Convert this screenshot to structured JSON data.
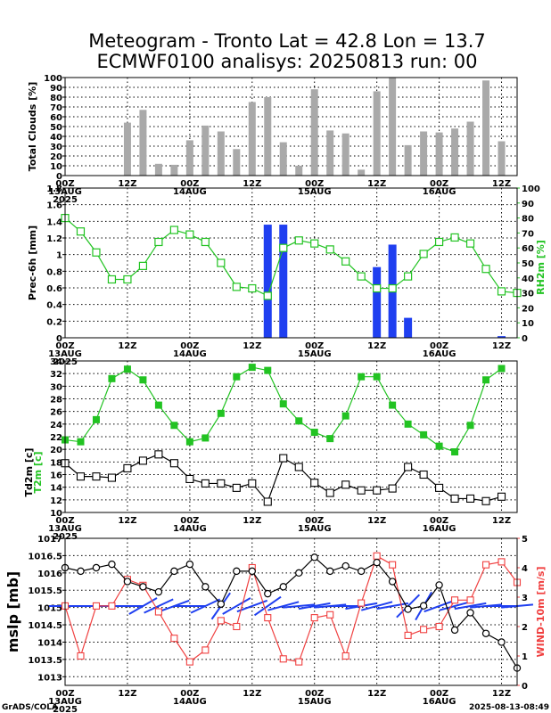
{
  "title_line1": "Meteogram - Tronto Lat = 42.8 Lon = 13.7",
  "title_line2": "ECMWF0100 analisys: 20250813 run: 00",
  "footer_left": "GrADS/COLA",
  "footer_right": "2025-08-13-08:49",
  "colors": {
    "gray_bar": "#a9a9a9",
    "blue": "#1f3ff0",
    "green": "#22c322",
    "black": "#000000",
    "red": "#f04040"
  },
  "x_axis": {
    "ticks": [
      "00Z",
      "12Z",
      "00Z",
      "12Z",
      "00Z",
      "12Z",
      "00Z",
      "12Z"
    ],
    "date_labels": [
      "13AUG",
      "14AUG",
      "15AUG",
      "16AUG"
    ],
    "year_label": "2025"
  },
  "chart_data": [
    {
      "type": "bar",
      "ylabel": "Total Clouds [%]",
      "ylim": [
        0,
        100
      ],
      "yticks": [
        0,
        10,
        20,
        30,
        40,
        50,
        60,
        70,
        80,
        90,
        100
      ],
      "series": [
        {
          "color": "#a9a9a9",
          "points": [
            [
              12,
              54
            ],
            [
              15,
              67
            ],
            [
              18,
              12
            ],
            [
              21,
              11
            ],
            [
              24,
              36
            ],
            [
              27,
              51
            ],
            [
              30,
              45
            ],
            [
              33,
              27
            ],
            [
              36,
              75
            ],
            [
              39,
              80
            ],
            [
              42,
              34
            ],
            [
              45,
              10
            ],
            [
              48,
              88
            ],
            [
              51,
              46
            ],
            [
              54,
              43
            ],
            [
              57,
              6
            ],
            [
              60,
              86
            ],
            [
              63,
              100
            ],
            [
              66,
              31
            ],
            [
              69,
              45
            ],
            [
              72,
              44
            ],
            [
              75,
              48
            ],
            [
              78,
              55
            ],
            [
              81,
              97
            ],
            [
              84,
              35
            ]
          ]
        }
      ]
    },
    {
      "type": "bar+line",
      "ylabel": "Prec-6h [mm]",
      "ylabel_right": "RH2m [%]",
      "ylim": [
        0,
        1.8
      ],
      "yticks": [
        0,
        0.2,
        0.4,
        0.6,
        0.8,
        1,
        1.2,
        1.4,
        1.6,
        1.8
      ],
      "y2lim": [
        0,
        100
      ],
      "y2ticks": [
        0,
        10,
        20,
        30,
        40,
        50,
        60,
        70,
        80,
        90,
        100
      ],
      "precip": [
        [
          39,
          1.36
        ],
        [
          42,
          1.36
        ],
        [
          60,
          0.85
        ],
        [
          63,
          1.12
        ],
        [
          66,
          0.24
        ],
        [
          84,
          0.02
        ]
      ],
      "rh2m": [
        [
          0,
          80
        ],
        [
          3,
          71
        ],
        [
          6,
          57
        ],
        [
          9,
          39
        ],
        [
          12,
          39
        ],
        [
          15,
          48
        ],
        [
          18,
          64
        ],
        [
          21,
          72
        ],
        [
          24,
          69
        ],
        [
          27,
          64
        ],
        [
          30,
          50
        ],
        [
          33,
          34
        ],
        [
          36,
          33
        ],
        [
          39,
          28
        ],
        [
          42,
          60
        ],
        [
          45,
          65
        ],
        [
          48,
          63
        ],
        [
          51,
          59
        ],
        [
          54,
          51
        ],
        [
          57,
          41
        ],
        [
          60,
          33
        ],
        [
          63,
          33
        ],
        [
          66,
          41
        ],
        [
          69,
          56
        ],
        [
          72,
          64
        ],
        [
          75,
          67
        ],
        [
          78,
          63
        ],
        [
          81,
          46
        ],
        [
          84,
          31
        ],
        [
          87,
          30
        ]
      ]
    },
    {
      "type": "line",
      "ylabel": "Td2m [c]",
      "ylabel_green": "T2m [c]",
      "ylim": [
        10,
        34
      ],
      "yticks": [
        10,
        12,
        14,
        16,
        18,
        20,
        22,
        24,
        26,
        28,
        30,
        32,
        34
      ],
      "t2m": [
        [
          0,
          21.5
        ],
        [
          3,
          21.2
        ],
        [
          6,
          24.7
        ],
        [
          9,
          31.2
        ],
        [
          12,
          32.7
        ],
        [
          15,
          31.0
        ],
        [
          18,
          27.0
        ],
        [
          21,
          23.8
        ],
        [
          24,
          21.2
        ],
        [
          27,
          21.8
        ],
        [
          30,
          25.7
        ],
        [
          33,
          31.5
        ],
        [
          36,
          33.0
        ],
        [
          39,
          32.5
        ],
        [
          42,
          27.2
        ],
        [
          45,
          24.5
        ],
        [
          48,
          22.7
        ],
        [
          51,
          21.7
        ],
        [
          54,
          25.3
        ],
        [
          57,
          31.5
        ],
        [
          60,
          31.5
        ],
        [
          63,
          27.0
        ],
        [
          66,
          24.0
        ],
        [
          69,
          22.3
        ],
        [
          72,
          20.5
        ],
        [
          75,
          19.6
        ],
        [
          78,
          23.8
        ],
        [
          81,
          31.0
        ],
        [
          84,
          32.8
        ]
      ],
      "td2m": [
        [
          0,
          17.8
        ],
        [
          3,
          15.7
        ],
        [
          6,
          15.7
        ],
        [
          9,
          15.5
        ],
        [
          12,
          17.0
        ],
        [
          15,
          18.2
        ],
        [
          18,
          19.2
        ],
        [
          21,
          17.8
        ],
        [
          24,
          15.3
        ],
        [
          27,
          14.6
        ],
        [
          30,
          14.6
        ],
        [
          33,
          13.9
        ],
        [
          36,
          14.6
        ],
        [
          39,
          11.7
        ],
        [
          42,
          18.6
        ],
        [
          45,
          17.2
        ],
        [
          48,
          14.7
        ],
        [
          51,
          13.1
        ],
        [
          54,
          14.4
        ],
        [
          57,
          13.5
        ],
        [
          60,
          13.5
        ],
        [
          63,
          13.8
        ],
        [
          66,
          17.2
        ],
        [
          69,
          16.0
        ],
        [
          72,
          13.9
        ],
        [
          75,
          12.2
        ],
        [
          78,
          12.2
        ],
        [
          81,
          11.8
        ],
        [
          84,
          12.5
        ]
      ]
    },
    {
      "type": "line+barbs",
      "ylabel": "mslp [mb]",
      "ylabel_right": "WIND-10m [m/s]",
      "ylim": [
        1012.75,
        1017.0
      ],
      "yticks": [
        1013,
        1013.5,
        1014,
        1014.5,
        1015,
        1015.5,
        1016,
        1016.5,
        1017
      ],
      "y2lim": [
        0,
        5
      ],
      "y2ticks": [
        0,
        1,
        2,
        3,
        4,
        5
      ],
      "mslp": [
        [
          0,
          1016.15
        ],
        [
          3,
          1016.05
        ],
        [
          6,
          1016.15
        ],
        [
          9,
          1016.25
        ],
        [
          12,
          1015.75
        ],
        [
          15,
          1015.6
        ],
        [
          18,
          1015.45
        ],
        [
          21,
          1016.05
        ],
        [
          24,
          1016.25
        ],
        [
          27,
          1015.6
        ],
        [
          30,
          1015.1
        ],
        [
          33,
          1016.05
        ],
        [
          36,
          1016.05
        ],
        [
          39,
          1015.4
        ],
        [
          42,
          1015.6
        ],
        [
          45,
          1016.0
        ],
        [
          48,
          1016.45
        ],
        [
          51,
          1016.05
        ],
        [
          54,
          1016.2
        ],
        [
          57,
          1016.05
        ],
        [
          60,
          1016.3
        ],
        [
          63,
          1015.75
        ],
        [
          66,
          1014.95
        ],
        [
          69,
          1015.05
        ],
        [
          72,
          1015.65
        ],
        [
          75,
          1014.35
        ],
        [
          78,
          1014.85
        ],
        [
          81,
          1014.25
        ],
        [
          84,
          1014.0
        ],
        [
          87,
          1013.25
        ]
      ],
      "wind10m": [
        [
          0,
          2.7
        ],
        [
          3,
          1.0
        ],
        [
          6,
          2.7
        ],
        [
          9,
          2.7
        ],
        [
          12,
          3.6
        ],
        [
          15,
          3.4
        ],
        [
          18,
          2.5
        ],
        [
          21,
          1.6
        ],
        [
          24,
          0.8
        ],
        [
          27,
          1.2
        ],
        [
          30,
          2.2
        ],
        [
          33,
          2.0
        ],
        [
          36,
          4.0
        ],
        [
          39,
          2.3
        ],
        [
          42,
          0.9
        ],
        [
          45,
          0.8
        ],
        [
          48,
          2.3
        ],
        [
          51,
          2.4
        ],
        [
          54,
          1.0
        ],
        [
          57,
          2.8
        ],
        [
          60,
          4.4
        ],
        [
          63,
          4.1
        ],
        [
          66,
          1.7
        ],
        [
          69,
          1.9
        ],
        [
          72,
          2.0
        ],
        [
          75,
          2.9
        ],
        [
          78,
          2.9
        ],
        [
          81,
          4.1
        ],
        [
          84,
          4.2
        ],
        [
          87,
          3.5
        ]
      ],
      "wind_barbs": [
        [
          0,
          0
        ],
        [
          3,
          0
        ],
        [
          6,
          0
        ],
        [
          9,
          0
        ],
        [
          12,
          0
        ],
        [
          15,
          30
        ],
        [
          18,
          25
        ],
        [
          21,
          20
        ],
        [
          24,
          0
        ],
        [
          27,
          25
        ],
        [
          30,
          55
        ],
        [
          33,
          30
        ],
        [
          36,
          20
        ],
        [
          39,
          35
        ],
        [
          42,
          15
        ],
        [
          45,
          5
        ],
        [
          48,
          10
        ],
        [
          51,
          5
        ],
        [
          54,
          0
        ],
        [
          57,
          10
        ],
        [
          60,
          15
        ],
        [
          63,
          10
        ],
        [
          66,
          45
        ],
        [
          69,
          60
        ],
        [
          72,
          20
        ],
        [
          75,
          15
        ],
        [
          78,
          10
        ],
        [
          81,
          5
        ],
        [
          84,
          0
        ],
        [
          87,
          5
        ]
      ]
    }
  ]
}
